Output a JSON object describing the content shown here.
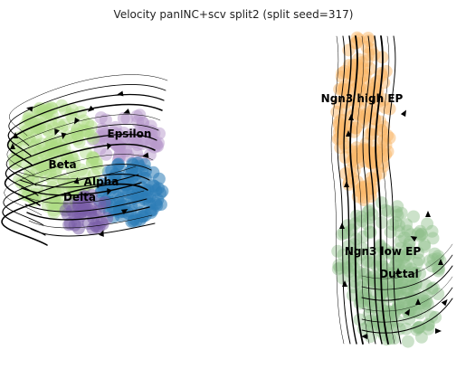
{
  "chart_data": {
    "type": "scatter",
    "title": "Velocity panINC+scv split2 (split seed=317)",
    "xlabel": "",
    "ylabel": "",
    "grid": false,
    "axes_visible": false,
    "overlay": "velocity streamlines with arrowheads",
    "clusters": [
      {
        "name": "Ngn3 high EP",
        "color": "#f9b86a"
      },
      {
        "name": "Ngn3 low EP",
        "color": "#8fbf8a"
      },
      {
        "name": "Ductal",
        "color": "#8fbf8a"
      },
      {
        "name": "Epsilon",
        "color": "#b79acb"
      },
      {
        "name": "Alpha",
        "color": "#2c7bb6"
      },
      {
        "name": "Beta",
        "color": "#addc83"
      },
      {
        "name": "Delta",
        "color": "#7a5ea8"
      }
    ]
  }
}
